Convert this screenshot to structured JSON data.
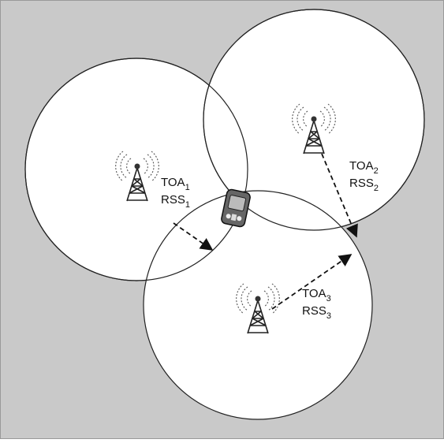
{
  "towers": [
    {
      "labels": [
        {
          "base": "TOA",
          "sub": "1"
        },
        {
          "base": "RSS",
          "sub": "1"
        }
      ]
    },
    {
      "labels": [
        {
          "base": "TOA",
          "sub": "2"
        },
        {
          "base": "RSS",
          "sub": "2"
        }
      ]
    },
    {
      "labels": [
        {
          "base": "TOA",
          "sub": "3"
        },
        {
          "base": "RSS",
          "sub": "3"
        }
      ]
    }
  ]
}
